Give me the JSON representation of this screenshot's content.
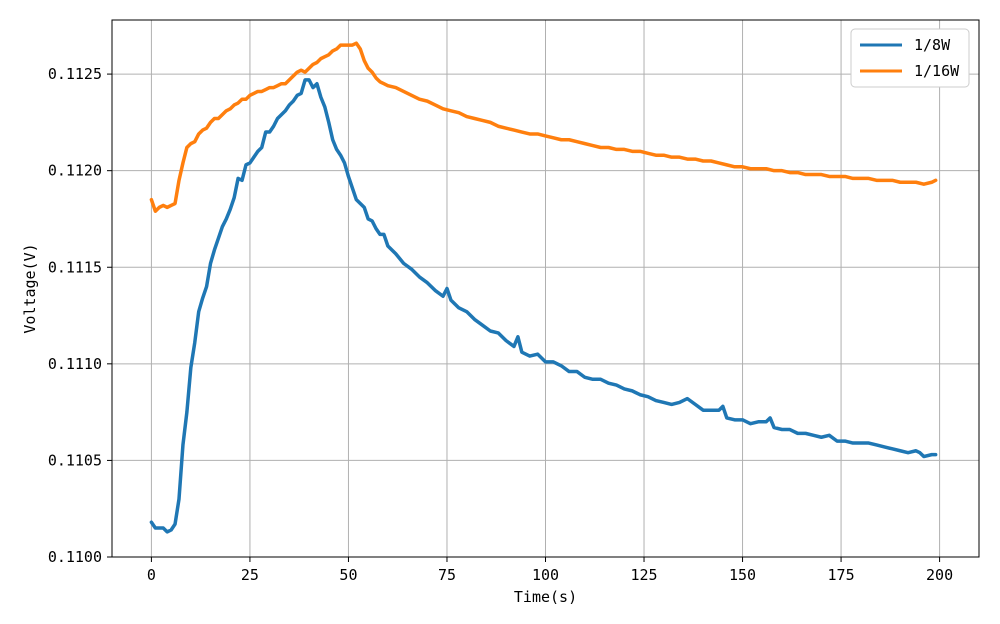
{
  "chart_data": {
    "type": "line",
    "title": "",
    "xlabel": "Time(s)",
    "ylabel": "Voltage(V)",
    "xlim": [
      -10,
      210
    ],
    "ylim": [
      0.11,
      0.11278
    ],
    "xticks": [
      0,
      25,
      50,
      75,
      100,
      125,
      150,
      175,
      200
    ],
    "xtick_labels": [
      "0",
      "25",
      "50",
      "75",
      "100",
      "125",
      "150",
      "175",
      "200"
    ],
    "yticks": [
      0.11,
      0.1105,
      0.111,
      0.1115,
      0.112,
      0.1125
    ],
    "ytick_labels": [
      "0.1100",
      "0.1105",
      "0.1110",
      "0.1115",
      "0.1120",
      "0.1125"
    ],
    "grid": true,
    "legend_position": "top-right",
    "series": [
      {
        "name": "1/8W",
        "color": "#1f77b4",
        "x": [
          0,
          1,
          2,
          3,
          4,
          5,
          6,
          7,
          8,
          9,
          10,
          11,
          12,
          13,
          14,
          15,
          16,
          17,
          18,
          19,
          20,
          21,
          22,
          23,
          24,
          25,
          26,
          27,
          28,
          29,
          30,
          31,
          32,
          33,
          34,
          35,
          36,
          37,
          38,
          39,
          40,
          41,
          42,
          43,
          44,
          45,
          46,
          47,
          48,
          49,
          50,
          51,
          52,
          53,
          54,
          55,
          56,
          57,
          58,
          59,
          60,
          62,
          64,
          66,
          68,
          70,
          72,
          74,
          75,
          76,
          78,
          80,
          82,
          84,
          86,
          88,
          90,
          92,
          93,
          94,
          96,
          98,
          100,
          102,
          104,
          106,
          108,
          110,
          112,
          114,
          116,
          118,
          120,
          122,
          124,
          126,
          128,
          130,
          132,
          134,
          136,
          138,
          140,
          142,
          144,
          145,
          146,
          148,
          150,
          152,
          154,
          156,
          157,
          158,
          160,
          162,
          164,
          166,
          168,
          170,
          172,
          174,
          176,
          178,
          180,
          182,
          184,
          186,
          188,
          190,
          192,
          194,
          195,
          196,
          198,
          199
        ],
        "values": [
          0.11018,
          0.11015,
          0.11015,
          0.11015,
          0.11013,
          0.11014,
          0.11017,
          0.1103,
          0.11058,
          0.11075,
          0.11098,
          0.11111,
          0.11127,
          0.11134,
          0.1114,
          0.11152,
          0.11159,
          0.11165,
          0.11171,
          0.11175,
          0.1118,
          0.11186,
          0.11196,
          0.11195,
          0.11203,
          0.11204,
          0.11207,
          0.1121,
          0.11212,
          0.1122,
          0.1122,
          0.11223,
          0.11227,
          0.11229,
          0.11231,
          0.11234,
          0.11236,
          0.11239,
          0.1124,
          0.11247,
          0.11247,
          0.11243,
          0.11245,
          0.11238,
          0.11233,
          0.11225,
          0.11216,
          0.11211,
          0.11208,
          0.11204,
          0.11197,
          0.11191,
          0.11185,
          0.11183,
          0.11181,
          0.11175,
          0.11174,
          0.1117,
          0.11167,
          0.11167,
          0.11161,
          0.11157,
          0.11152,
          0.11149,
          0.11145,
          0.11142,
          0.11138,
          0.11135,
          0.11139,
          0.11133,
          0.11129,
          0.11127,
          0.11123,
          0.1112,
          0.11117,
          0.11116,
          0.11112,
          0.11109,
          0.11114,
          0.11106,
          0.11104,
          0.11105,
          0.11101,
          0.11101,
          0.11099,
          0.11096,
          0.11096,
          0.11093,
          0.11092,
          0.11092,
          0.1109,
          0.11089,
          0.11087,
          0.11086,
          0.11084,
          0.11083,
          0.11081,
          0.1108,
          0.11079,
          0.1108,
          0.11082,
          0.11079,
          0.11076,
          0.11076,
          0.11076,
          0.11078,
          0.11072,
          0.11071,
          0.11071,
          0.11069,
          0.1107,
          0.1107,
          0.11072,
          0.11067,
          0.11066,
          0.11066,
          0.11064,
          0.11064,
          0.11063,
          0.11062,
          0.11063,
          0.1106,
          0.1106,
          0.11059,
          0.11059,
          0.11059,
          0.11058,
          0.11057,
          0.11056,
          0.11055,
          0.11054,
          0.11055,
          0.11054,
          0.11052,
          0.11053,
          0.11053
        ]
      },
      {
        "name": "1/16W",
        "color": "#ff7f0e",
        "x": [
          0,
          1,
          2,
          3,
          4,
          5,
          6,
          7,
          8,
          9,
          10,
          11,
          12,
          13,
          14,
          15,
          16,
          17,
          18,
          19,
          20,
          21,
          22,
          23,
          24,
          25,
          26,
          27,
          28,
          29,
          30,
          31,
          32,
          33,
          34,
          35,
          36,
          37,
          38,
          39,
          40,
          41,
          42,
          43,
          44,
          45,
          46,
          47,
          48,
          49,
          50,
          51,
          52,
          53,
          54,
          55,
          56,
          57,
          58,
          59,
          60,
          62,
          64,
          66,
          68,
          70,
          72,
          74,
          76,
          78,
          80,
          82,
          84,
          86,
          88,
          90,
          92,
          94,
          96,
          98,
          100,
          102,
          104,
          106,
          108,
          110,
          112,
          114,
          116,
          118,
          120,
          122,
          124,
          126,
          128,
          130,
          132,
          134,
          136,
          138,
          140,
          142,
          144,
          146,
          148,
          150,
          152,
          154,
          156,
          158,
          160,
          162,
          164,
          166,
          168,
          170,
          172,
          174,
          176,
          178,
          180,
          182,
          184,
          186,
          188,
          190,
          192,
          194,
          196,
          198,
          199
        ],
        "values": [
          0.11185,
          0.11179,
          0.11181,
          0.11182,
          0.11181,
          0.11182,
          0.11183,
          0.11195,
          0.11204,
          0.11212,
          0.11214,
          0.11215,
          0.11219,
          0.11221,
          0.11222,
          0.11225,
          0.11227,
          0.11227,
          0.11229,
          0.11231,
          0.11232,
          0.11234,
          0.11235,
          0.11237,
          0.11237,
          0.11239,
          0.1124,
          0.11241,
          0.11241,
          0.11242,
          0.11243,
          0.11243,
          0.11244,
          0.11245,
          0.11245,
          0.11247,
          0.11249,
          0.11251,
          0.11252,
          0.11251,
          0.11253,
          0.11255,
          0.11256,
          0.11258,
          0.11259,
          0.1126,
          0.11262,
          0.11263,
          0.11265,
          0.11265,
          0.11265,
          0.11265,
          0.11266,
          0.11263,
          0.11257,
          0.11253,
          0.11251,
          0.11248,
          0.11246,
          0.11245,
          0.11244,
          0.11243,
          0.11241,
          0.11239,
          0.11237,
          0.11236,
          0.11234,
          0.11232,
          0.11231,
          0.1123,
          0.11228,
          0.11227,
          0.11226,
          0.11225,
          0.11223,
          0.11222,
          0.11221,
          0.1122,
          0.11219,
          0.11219,
          0.11218,
          0.11217,
          0.11216,
          0.11216,
          0.11215,
          0.11214,
          0.11213,
          0.11212,
          0.11212,
          0.11211,
          0.11211,
          0.1121,
          0.1121,
          0.11209,
          0.11208,
          0.11208,
          0.11207,
          0.11207,
          0.11206,
          0.11206,
          0.11205,
          0.11205,
          0.11204,
          0.11203,
          0.11202,
          0.11202,
          0.11201,
          0.11201,
          0.11201,
          0.112,
          0.112,
          0.11199,
          0.11199,
          0.11198,
          0.11198,
          0.11198,
          0.11197,
          0.11197,
          0.11197,
          0.11196,
          0.11196,
          0.11196,
          0.11195,
          0.11195,
          0.11195,
          0.11194,
          0.11194,
          0.11194,
          0.11193,
          0.11194,
          0.11195
        ]
      }
    ]
  }
}
